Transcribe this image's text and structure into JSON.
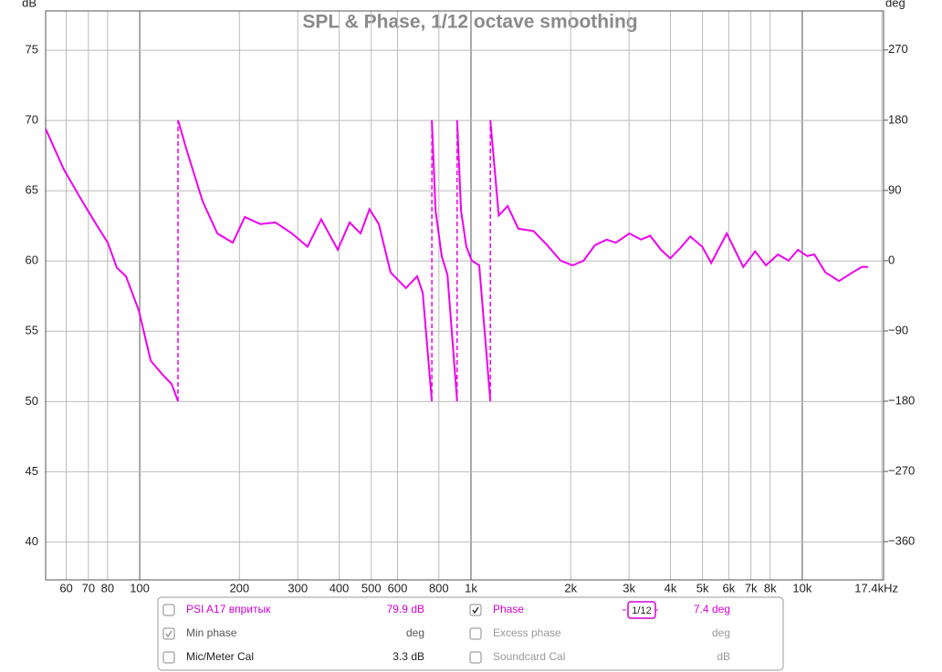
{
  "chart_data": {
    "type": "line",
    "title": "SPL & Phase, 1/12 octave smoothing",
    "y_label": "dB",
    "y2_label": "deg",
    "log_x": true,
    "grid": true,
    "xlim": [
      52,
      17600
    ],
    "ylim": [
      37.3,
      77.8
    ],
    "y2lim": [
      -409,
      320
    ],
    "xticks": [
      60,
      70,
      80,
      100,
      200,
      300,
      400,
      500,
      600,
      800,
      {
        "value": 1000,
        "label": "1k"
      },
      {
        "value": 2000,
        "label": "2k"
      },
      {
        "value": 3000,
        "label": "3k"
      },
      {
        "value": 4000,
        "label": "4k"
      },
      {
        "value": 5000,
        "label": "5k"
      },
      {
        "value": 6000,
        "label": "6k"
      },
      {
        "value": 7000,
        "label": "7k"
      },
      {
        "value": 8000,
        "label": "8k"
      },
      {
        "value": 10000,
        "label": "10k"
      },
      {
        "value": 17400,
        "label": "17.4kHz"
      }
    ],
    "yticks": [
      40,
      45,
      50,
      55,
      60,
      65,
      70,
      75
    ],
    "y2ticks": [
      {
        "value": -360,
        "label": "−360"
      },
      {
        "value": -270,
        "label": "−270"
      },
      {
        "value": -180,
        "label": "−180"
      },
      {
        "value": -90,
        "label": "−90"
      },
      0,
      90,
      180,
      270
    ],
    "x": [
      52,
      59,
      67.1,
      73.8,
      80.1,
      85.3,
      90.9,
      99.4,
      107.9,
      117.2,
      124.8,
      130.5,
      null,
      130.5,
      139,
      154.9,
      171.5,
      190.9,
      207.6,
      231,
      257,
      288,
      321,
      353,
      396,
      430,
      464,
      494,
      527,
      572,
      636,
      688,
      715,
      762,
      null,
      762,
      782,
      816,
      849,
      908,
      null,
      908,
      933,
      968,
      1006,
      1059,
      1144,
      null,
      1144,
      1213,
      1291,
      1389,
      1545,
      1698,
      1865,
      2028,
      2187,
      2367,
      2569,
      2737,
      3007,
      3261,
      3475,
      3746,
      3995,
      4256,
      4592,
      4988,
      5311,
      5916,
      6639,
      7207,
      7775,
      8441,
      9100,
      9700,
      10340,
      10880,
      11740,
      12910,
      14190,
      15120,
      15800
    ],
    "series": [
      {
        "name": "Phase",
        "color": "#ee00ee",
        "axis": "y2",
        "values": [
          169,
          117,
          76,
          47,
          23,
          -9,
          -20,
          -64,
          -128,
          -146,
          -158,
          -180,
          null,
          180,
          140,
          76,
          35,
          23,
          56,
          47,
          49,
          35,
          18,
          53,
          14,
          49,
          35,
          66,
          47,
          -15,
          -35,
          -20,
          -41,
          -180,
          null,
          180,
          64,
          6,
          -18,
          -180,
          null,
          180,
          64,
          18,
          0,
          -6,
          -180,
          null,
          180,
          58,
          70,
          41,
          38,
          20,
          0,
          -6,
          0,
          20,
          27,
          23,
          35,
          27,
          32,
          14,
          3,
          15,
          31,
          18,
          -3,
          35,
          -8,
          12,
          -6,
          8,
          0,
          14,
          6,
          8,
          -15,
          -26,
          -15,
          -8,
          -8
        ]
      }
    ]
  },
  "controls": [
    {
      "left": {
        "label": "PSI A17 впритык",
        "checked": false,
        "value": "79.9 dB",
        "color": "#d000d0"
      },
      "right": {
        "label": "Phase",
        "checked": true,
        "smoothing": "1/12",
        "value": "7.4 deg",
        "color": "#d000d0"
      }
    },
    {
      "left": {
        "label": "Min phase",
        "checked": true,
        "value": "deg",
        "color": "#555555"
      },
      "right": {
        "label": "Excess phase",
        "checked": false,
        "value": "deg",
        "color": "#999999"
      }
    },
    {
      "left": {
        "label": "Mic/Meter Cal",
        "checked": false,
        "value": "3.3 dB",
        "color": "#222222"
      },
      "right": {
        "label": "Soundcard Cal",
        "checked": false,
        "value": "dB",
        "color": "#999999"
      }
    }
  ]
}
